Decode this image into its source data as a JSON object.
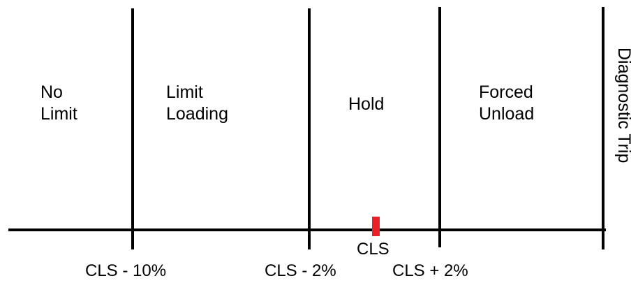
{
  "zones": {
    "no_limit": {
      "line1": "No",
      "line2": "Limit"
    },
    "limit_loading": {
      "line1": "Limit",
      "line2": "Loading"
    },
    "hold": {
      "line1": "Hold"
    },
    "forced_unload": {
      "line1": "Forced",
      "line2": "Unload"
    },
    "diagnostic_trip": {
      "label": "Diagnostic Trip"
    }
  },
  "thresholds": {
    "cls_minus_10": "CLS - 10%",
    "cls_minus_2": "CLS - 2%",
    "cls": "CLS",
    "cls_plus_2": "CLS + 2%"
  },
  "colors": {
    "line": "#000000",
    "cls_marker": "#e8202a"
  }
}
